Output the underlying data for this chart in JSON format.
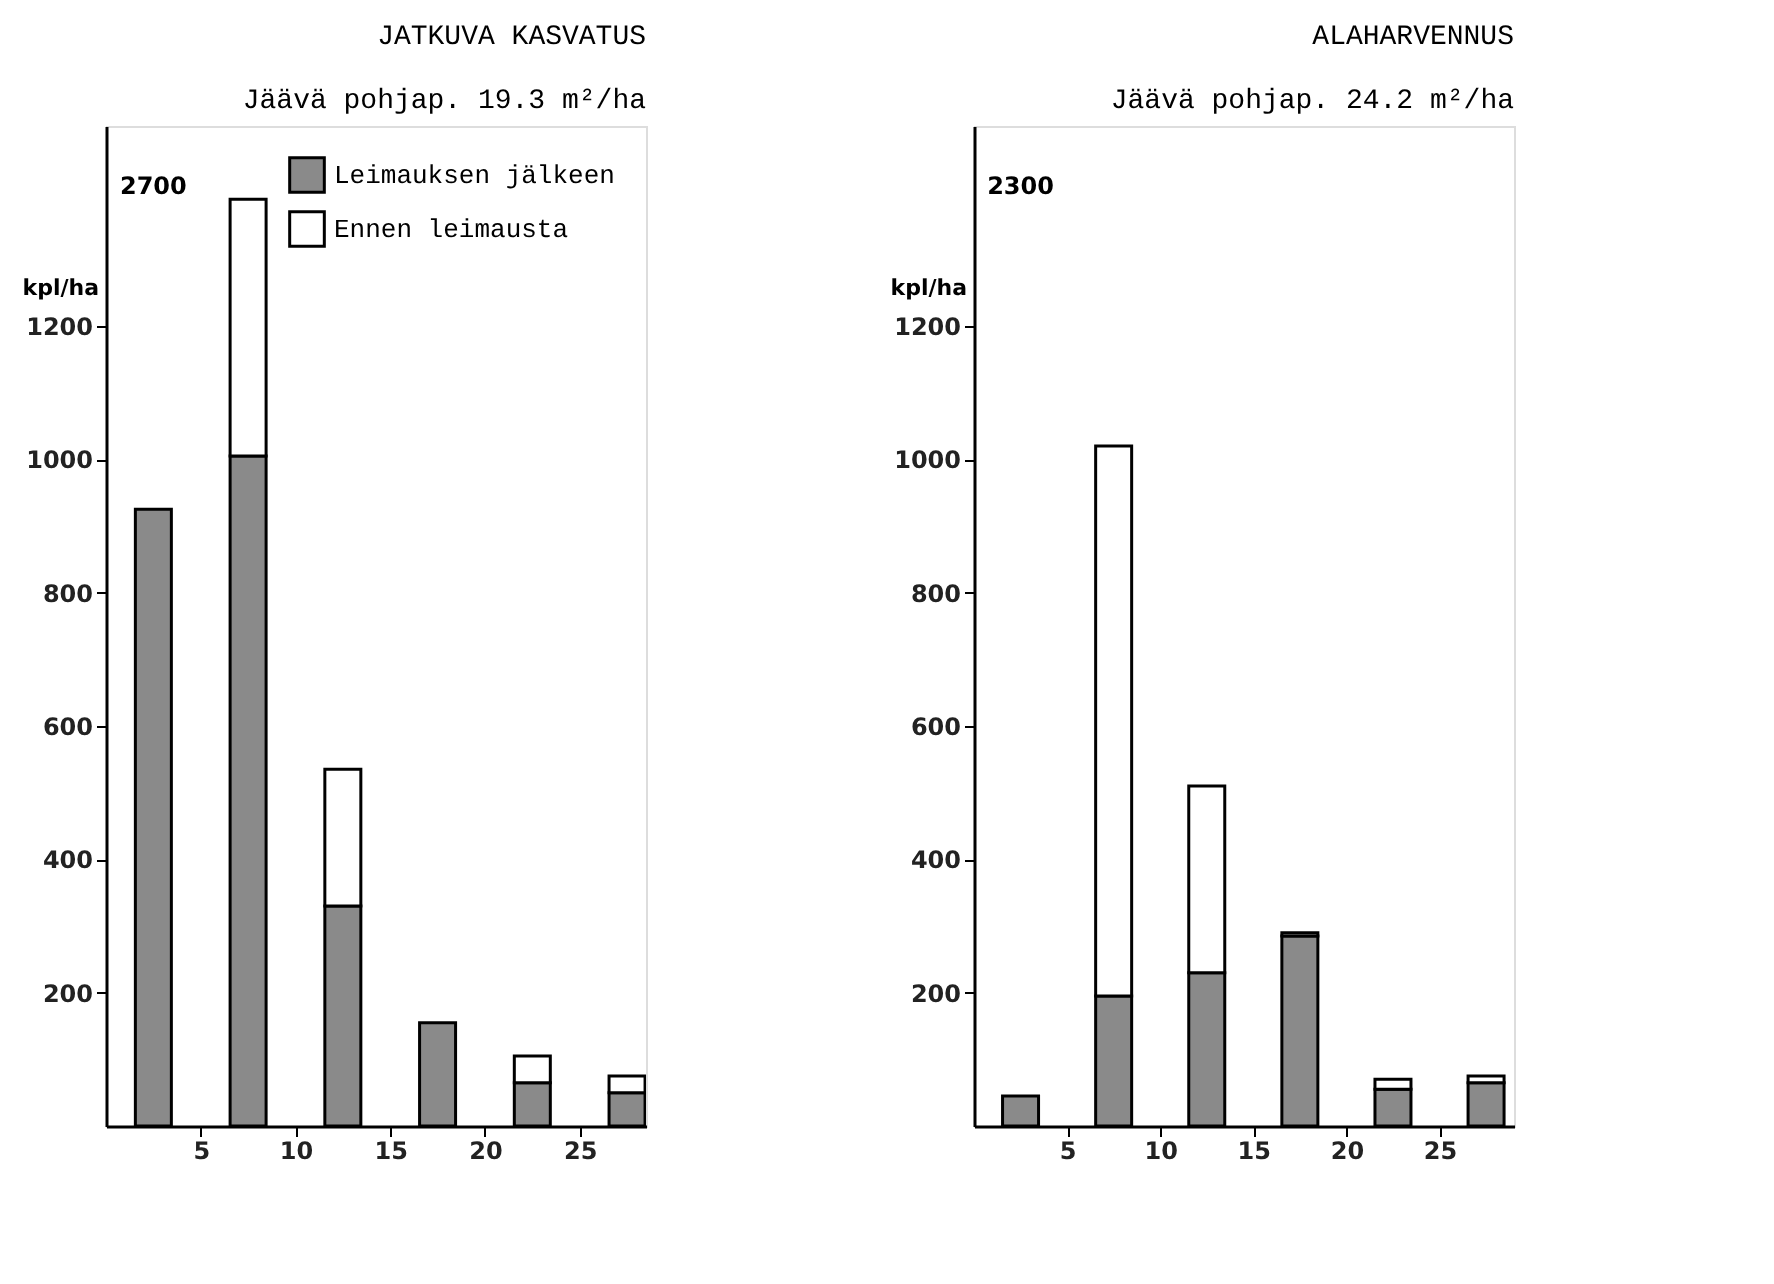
{
  "chart_data": [
    {
      "type": "bar",
      "title": "JATKUVA KASVATUS",
      "subtitle": "Jäävä pohjap. 19.3 m²/ha",
      "ylabel": "kpl/ha",
      "stacked": true,
      "x": [
        2.5,
        7.5,
        12.5,
        17.5,
        22.5,
        27.5
      ],
      "series": [
        {
          "name": "Leimauksen jälkeen",
          "color": "#8a8a8a",
          "values": [
            925,
            1005,
            330,
            155,
            65,
            50
          ]
        },
        {
          "name": "Ennen leimausta",
          "color": "#ffffff",
          "values": [
            null,
            385,
            205,
            null,
            40,
            25
          ]
        }
      ],
      "annotations": [
        "2700"
      ],
      "xlim": [
        0,
        28.5
      ],
      "xticks": [
        5,
        10,
        15,
        20,
        25
      ],
      "ylim": [
        0,
        1500
      ],
      "yticks": [
        200,
        400,
        600,
        800,
        1000,
        1200
      ],
      "grid": false,
      "legend": "top right"
    },
    {
      "type": "bar",
      "title": "ALAHARVENNUS",
      "subtitle": "Jäävä pohjap. 24.2 m²/ha",
      "ylabel": "kpl/ha",
      "stacked": true,
      "x": [
        2.5,
        7.5,
        12.5,
        17.5,
        22.5,
        27.5
      ],
      "series": [
        {
          "color": "#8a8a8a",
          "values": [
            45,
            195,
            230,
            285,
            55,
            65
          ]
        },
        {
          "color": "#ffffff",
          "values": [
            null,
            825,
            280,
            5,
            15,
            10
          ]
        }
      ],
      "annotations": [
        "2300"
      ],
      "xlim": [
        0,
        29
      ],
      "xticks": [
        5,
        10,
        15,
        20,
        25
      ],
      "ylim": [
        0,
        1500
      ],
      "yticks": [
        200,
        400,
        600,
        800,
        1000,
        1200
      ],
      "grid": false,
      "legend": false
    }
  ]
}
